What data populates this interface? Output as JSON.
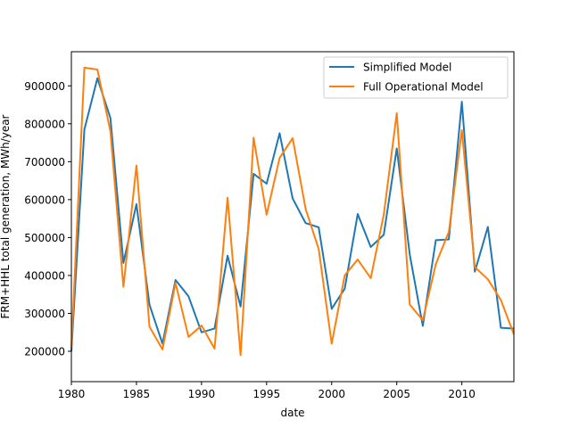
{
  "chart_data": {
    "type": "line",
    "xlabel": "date",
    "ylabel": "FRM+HHL total generation, MWh/year",
    "xlim": [
      1980,
      2014
    ],
    "ylim": [
      120000,
      990000
    ],
    "xticks": [
      1980,
      1985,
      1990,
      1995,
      2000,
      2005,
      2010
    ],
    "yticks": [
      200000,
      300000,
      400000,
      500000,
      600000,
      700000,
      800000,
      900000
    ],
    "grid": false,
    "legend_position": "upper right",
    "x": [
      1980,
      1981,
      1982,
      1983,
      1984,
      1985,
      1986,
      1987,
      1988,
      1989,
      1990,
      1991,
      1992,
      1993,
      1994,
      1995,
      1996,
      1997,
      1998,
      1999,
      2000,
      2001,
      2002,
      2003,
      2004,
      2005,
      2006,
      2007,
      2008,
      2009,
      2010,
      2011,
      2012,
      2013,
      2014
    ],
    "series": [
      {
        "name": "Simplified Model",
        "color": "#1f77b4",
        "values": [
          200000,
          785000,
          920000,
          815000,
          433000,
          588000,
          323000,
          220000,
          388000,
          345000,
          250000,
          260000,
          452000,
          318000,
          668000,
          642000,
          775000,
          603000,
          538000,
          527000,
          312000,
          365000,
          562000,
          475000,
          507000,
          735000,
          455000,
          267000,
          493000,
          495000,
          858000,
          410000,
          528000,
          262000,
          260000
        ]
      },
      {
        "name": "Full Operational Model",
        "color": "#ff7f0e",
        "values": [
          210000,
          948000,
          943000,
          780000,
          370000,
          690000,
          265000,
          205000,
          380000,
          238000,
          268000,
          207000,
          605000,
          190000,
          763000,
          560000,
          710000,
          762000,
          575000,
          470000,
          220000,
          400000,
          442000,
          393000,
          560000,
          828000,
          323000,
          282000,
          430000,
          515000,
          783000,
          422000,
          390000,
          335000,
          245000
        ]
      }
    ]
  }
}
